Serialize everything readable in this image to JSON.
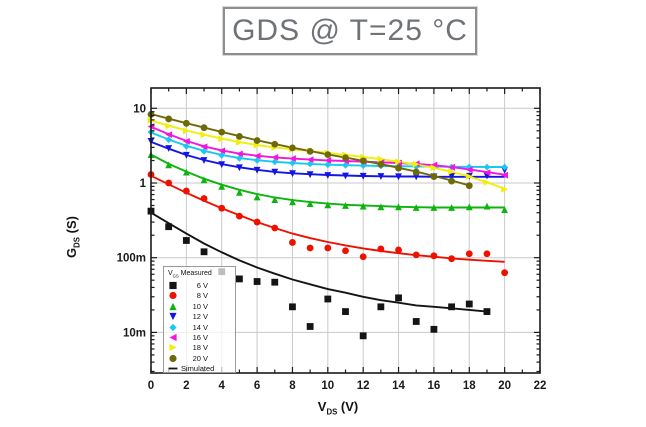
{
  "title_box": {
    "text": "GDS @ T=25 °C",
    "border_color": "#8b8f94",
    "text_color": "#6f7378"
  },
  "colors": {
    "grid": "#c9c9c9",
    "axis": "#1a1a1a",
    "background": "#ffffff"
  },
  "chart_data": {
    "type": "line",
    "title": "GDS @ T=25 °C",
    "xlabel": {
      "pre": "V",
      "sub": "DS",
      "post": " (V)"
    },
    "ylabel": {
      "pre": "G",
      "sub": "DS",
      "post": " (S)"
    },
    "x_axis": {
      "min": 0,
      "max": 22,
      "minor_step": 1,
      "grid": true,
      "major_ticks": [
        0,
        2,
        4,
        6,
        8,
        10,
        12,
        14,
        16,
        18,
        20,
        22
      ],
      "tick_labels": [
        "0",
        "2",
        "4",
        "6",
        "8",
        "10",
        "12",
        "14",
        "16",
        "18",
        "20",
        "22"
      ]
    },
    "y_axis": {
      "scale": "log",
      "min": 0.003,
      "max": 18,
      "grid": true,
      "major_ticks": [
        10,
        1,
        0.1,
        0.01
      ],
      "tick_labels": [
        "10",
        "1",
        "100m",
        "10m"
      ]
    },
    "legend": {
      "position": "lower-left",
      "header_pre": "V",
      "header_sub": "GS",
      "header_post": " Measured",
      "sim_label": "Simulated"
    },
    "x": [
      0,
      1,
      2,
      3,
      4,
      5,
      6,
      7,
      8,
      9,
      10,
      11,
      12,
      13,
      14,
      15,
      16,
      17,
      18,
      19,
      20
    ],
    "series": [
      {
        "label": "6 V",
        "vgs": 6,
        "color": "#141414",
        "marker": "square",
        "measured": [
          0.42,
          0.26,
          0.17,
          0.12,
          0.065,
          0.052,
          0.048,
          0.047,
          0.022,
          0.012,
          0.028,
          0.019,
          0.009,
          0.022,
          0.029,
          0.014,
          0.011,
          0.022,
          0.024,
          0.019,
          null
        ],
        "simulated": [
          0.4,
          0.29,
          0.21,
          0.155,
          0.118,
          0.092,
          0.074,
          0.061,
          0.051,
          0.044,
          0.038,
          0.034,
          0.03,
          0.027,
          0.025,
          0.023,
          0.022,
          0.021,
          0.02,
          0.019,
          null
        ]
      },
      {
        "label": "8 V",
        "vgs": 8,
        "color": "#ee1100",
        "marker": "circle",
        "measured": [
          1.3,
          1.0,
          0.78,
          0.62,
          0.46,
          0.36,
          0.3,
          0.25,
          0.16,
          0.135,
          0.135,
          0.124,
          0.103,
          0.131,
          0.127,
          0.109,
          0.106,
          0.097,
          0.113,
          0.113,
          0.063
        ],
        "simulated": [
          1.25,
          0.96,
          0.74,
          0.58,
          0.46,
          0.37,
          0.3,
          0.25,
          0.21,
          0.183,
          0.162,
          0.146,
          0.133,
          0.123,
          0.115,
          0.108,
          0.103,
          0.098,
          0.094,
          0.091,
          0.088
        ]
      },
      {
        "label": "10 V",
        "vgs": 10,
        "color": "#0db40d",
        "marker": "triangle-up",
        "measured": [
          2.4,
          1.75,
          1.4,
          1.1,
          0.9,
          0.75,
          0.65,
          0.6,
          0.56,
          0.53,
          0.51,
          0.5,
          0.49,
          0.48,
          0.48,
          0.47,
          0.47,
          0.47,
          0.48,
          0.49,
          0.44
        ],
        "simulated": [
          2.4,
          1.8,
          1.42,
          1.14,
          0.95,
          0.81,
          0.71,
          0.64,
          0.59,
          0.555,
          0.53,
          0.51,
          0.5,
          0.49,
          0.48,
          0.475,
          0.47,
          0.47,
          0.47,
          0.47,
          0.47
        ]
      },
      {
        "label": "12 V",
        "vgs": 12,
        "color": "#1414e6",
        "marker": "triangle-down",
        "measured": [
          3.6,
          2.9,
          2.35,
          2.0,
          1.76,
          1.6,
          1.48,
          1.4,
          1.33,
          1.29,
          1.26,
          1.24,
          1.23,
          1.22,
          1.21,
          1.21,
          1.21,
          1.22,
          1.23,
          1.24,
          1.48
        ],
        "simulated": [
          3.55,
          2.88,
          2.37,
          2.03,
          1.79,
          1.62,
          1.5,
          1.41,
          1.35,
          1.31,
          1.28,
          1.26,
          1.24,
          1.23,
          1.22,
          1.22,
          1.21,
          1.21,
          1.21,
          1.21,
          1.21
        ]
      },
      {
        "label": "14 V",
        "vgs": 14,
        "color": "#18c8f0",
        "marker": "diamond",
        "measured": [
          4.8,
          3.8,
          3.1,
          2.65,
          2.35,
          2.14,
          2.0,
          1.92,
          1.85,
          1.8,
          1.76,
          1.73,
          1.71,
          1.69,
          1.67,
          1.66,
          1.65,
          1.64,
          1.64,
          1.63,
          1.63
        ],
        "simulated": [
          4.75,
          3.82,
          3.15,
          2.7,
          2.38,
          2.16,
          2.02,
          1.92,
          1.85,
          1.8,
          1.76,
          1.73,
          1.71,
          1.69,
          1.68,
          1.67,
          1.66,
          1.65,
          1.65,
          1.64,
          1.64
        ]
      },
      {
        "label": "16 V",
        "vgs": 16,
        "color": "#f216de",
        "marker": "triangle-left",
        "measured": [
          5.7,
          4.45,
          3.6,
          3.05,
          2.7,
          2.45,
          2.3,
          2.2,
          2.12,
          2.06,
          2.01,
          1.97,
          1.94,
          1.9,
          1.86,
          1.81,
          1.74,
          1.62,
          1.5,
          1.38,
          1.27
        ],
        "simulated": [
          5.65,
          4.5,
          3.66,
          3.1,
          2.73,
          2.48,
          2.32,
          2.2,
          2.12,
          2.06,
          2.01,
          1.97,
          1.93,
          1.89,
          1.85,
          1.8,
          1.73,
          1.63,
          1.52,
          1.4,
          1.29
        ]
      },
      {
        "label": "18 V",
        "vgs": 18,
        "color": "#f2ee0c",
        "marker": "triangle-right",
        "measured": [
          6.9,
          5.8,
          5.0,
          4.4,
          3.9,
          3.5,
          3.2,
          3.0,
          2.83,
          2.68,
          2.53,
          2.38,
          2.23,
          2.08,
          1.93,
          1.78,
          1.6,
          1.42,
          1.22,
          1.02,
          0.82
        ],
        "simulated": [
          6.85,
          5.85,
          5.05,
          4.43,
          3.93,
          3.53,
          3.22,
          3.0,
          2.83,
          2.68,
          2.53,
          2.38,
          2.23,
          2.08,
          1.93,
          1.77,
          1.6,
          1.41,
          1.22,
          1.02,
          0.84
        ]
      },
      {
        "label": "20 V",
        "vgs": 20,
        "color": "#6e6a0a",
        "marker": "circle",
        "measured": [
          8.3,
          7.2,
          6.3,
          5.5,
          4.8,
          4.2,
          3.7,
          3.3,
          2.95,
          2.65,
          2.4,
          2.18,
          1.98,
          1.78,
          1.58,
          1.4,
          1.22,
          1.06,
          0.92,
          null,
          null
        ],
        "simulated": [
          8.4,
          7.25,
          6.32,
          5.52,
          4.83,
          4.24,
          3.73,
          3.32,
          2.97,
          2.67,
          2.41,
          2.19,
          1.98,
          1.79,
          1.6,
          1.42,
          1.24,
          1.08,
          0.93,
          null,
          null
        ]
      }
    ]
  }
}
